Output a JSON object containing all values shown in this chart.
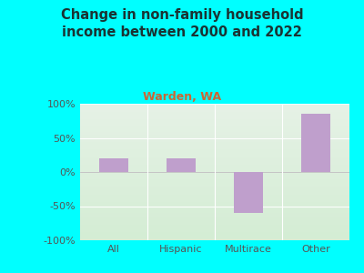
{
  "title": "Change in non-family household\nincome between 2000 and 2022",
  "subtitle": "Warden, WA",
  "categories": [
    "All",
    "Hispanic",
    "Multirace",
    "Other"
  ],
  "values": [
    20,
    20,
    -60,
    85
  ],
  "bar_color": "#bf9fcc",
  "background_color": "#00ffff",
  "plot_bg_top": "#e6f2e6",
  "plot_bg_bottom": "#d4edd4",
  "ylim": [
    -100,
    100
  ],
  "yticks": [
    -100,
    -50,
    0,
    50,
    100
  ],
  "ytick_labels": [
    "-100%",
    "-50%",
    "0%",
    "50%",
    "100%"
  ],
  "title_color": "#1a3333",
  "subtitle_color": "#cc6633",
  "title_fontsize": 10.5,
  "subtitle_fontsize": 9,
  "tick_color": "#555555",
  "tick_fontsize": 8
}
